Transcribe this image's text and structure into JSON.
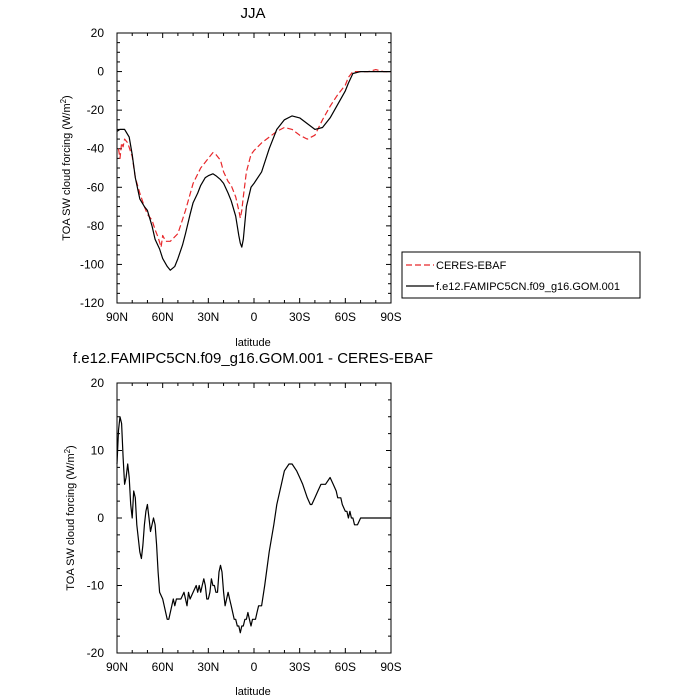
{
  "chart_data": [
    {
      "type": "line",
      "title": "JJA",
      "xlabel": "latitude",
      "ylabel_main": "TOA SW cloud forcing (W/m",
      "ylabel_sup": "2",
      "ylabel_tail": ")",
      "xlim": [
        90,
        -90
      ],
      "ylim": [
        -120,
        20
      ],
      "x_ticks": [
        {
          "value": 90,
          "label": "90N"
        },
        {
          "value": 60,
          "label": "60N"
        },
        {
          "value": 30,
          "label": "30N"
        },
        {
          "value": 0,
          "label": "0"
        },
        {
          "value": -30,
          "label": "30S"
        },
        {
          "value": -60,
          "label": "60S"
        },
        {
          "value": -90,
          "label": "90S"
        }
      ],
      "y_ticks": [
        {
          "value": 20,
          "label": "20"
        },
        {
          "value": 0,
          "label": "0"
        },
        {
          "value": -20,
          "label": "-20"
        },
        {
          "value": -40,
          "label": "-40"
        },
        {
          "value": -60,
          "label": "-60"
        },
        {
          "value": -80,
          "label": "-80"
        },
        {
          "value": -100,
          "label": "-100"
        },
        {
          "value": -120,
          "label": "-120"
        }
      ],
      "legend": "outside-right",
      "series": [
        {
          "name": "CERES-EBAF",
          "style": "dashed",
          "color": "#e8282b",
          "x": [
            89,
            88,
            87,
            86,
            85,
            83,
            80,
            78,
            75,
            72,
            70,
            67,
            65,
            63,
            61,
            60,
            58,
            55,
            50,
            45,
            40,
            35,
            30,
            27,
            25,
            22,
            20,
            17,
            15,
            12,
            10,
            9,
            8,
            7,
            5,
            2,
            0,
            -5,
            -10,
            -15,
            -20,
            -25,
            -30,
            -35,
            -40,
            -45,
            -50,
            -55,
            -60,
            -62,
            -65,
            -70,
            -75,
            -80,
            -85,
            -90
          ],
          "y": [
            -40,
            -45,
            -37,
            -39,
            -35,
            -37,
            -44,
            -55,
            -63,
            -70,
            -74,
            -77,
            -82,
            -86,
            -91,
            -85,
            -88,
            -88,
            -84,
            -72,
            -58,
            -50,
            -45,
            -42,
            -43,
            -46,
            -52,
            -57,
            -59,
            -65,
            -72,
            -76,
            -72,
            -65,
            -52,
            -43,
            -41,
            -37,
            -34,
            -31,
            -29,
            -30,
            -33,
            -35,
            -33,
            -25,
            -18,
            -12,
            -7,
            -3,
            0,
            0,
            0,
            1,
            0,
            0
          ]
        },
        {
          "name": "f.e12.FAMIPC5CN.f09_g16.GOM.001",
          "style": "solid",
          "color": "#000000",
          "x": [
            90,
            88,
            85,
            82,
            80,
            78,
            75,
            72,
            70,
            67,
            65,
            62,
            60,
            57,
            55,
            52,
            50,
            47,
            45,
            42,
            40,
            37,
            35,
            32,
            30,
            27,
            25,
            22,
            20,
            17,
            15,
            12,
            10,
            9,
            8,
            7,
            5,
            2,
            0,
            -5,
            -10,
            -15,
            -20,
            -25,
            -30,
            -35,
            -40,
            -45,
            -50,
            -55,
            -60,
            -62,
            -65,
            -70,
            -75,
            -80,
            -85,
            -90
          ],
          "y": [
            -31,
            -30,
            -30,
            -34,
            -43,
            -55,
            -66,
            -70,
            -72,
            -80,
            -87,
            -92,
            -97,
            -101,
            -103,
            -101,
            -97,
            -90,
            -84,
            -74,
            -68,
            -63,
            -59,
            -55,
            -54,
            -53,
            -54,
            -56,
            -58,
            -63,
            -67,
            -75,
            -85,
            -89,
            -91,
            -87,
            -70,
            -60,
            -58,
            -52,
            -40,
            -30,
            -25,
            -23,
            -24,
            -27,
            -30,
            -29,
            -24,
            -17,
            -10,
            -6,
            -1,
            0,
            0,
            0,
            0,
            0
          ]
        }
      ]
    },
    {
      "type": "line",
      "title": "f.e12.FAMIPC5CN.f09_g16.GOM.001 - CERES-EBAF",
      "xlabel": "latitude",
      "ylabel_main": "TOA SW cloud forcing (W/m",
      "ylabel_sup": "2",
      "ylabel_tail": ")",
      "xlim": [
        90,
        -90
      ],
      "ylim": [
        -20,
        20
      ],
      "x_ticks": [
        {
          "value": 90,
          "label": "90N"
        },
        {
          "value": 60,
          "label": "60N"
        },
        {
          "value": 30,
          "label": "30N"
        },
        {
          "value": 0,
          "label": "0"
        },
        {
          "value": -30,
          "label": "30S"
        },
        {
          "value": -60,
          "label": "60S"
        },
        {
          "value": -90,
          "label": "90S"
        }
      ],
      "y_ticks": [
        {
          "value": 20,
          "label": "20"
        },
        {
          "value": 10,
          "label": "10"
        },
        {
          "value": 0,
          "label": "0"
        },
        {
          "value": -10,
          "label": "-10"
        },
        {
          "value": -20,
          "label": "-20"
        }
      ],
      "series": [
        {
          "style": "solid",
          "color": "#000000",
          "x": [
            90,
            89,
            88,
            87,
            86,
            85,
            84,
            83,
            82,
            81,
            80,
            79,
            78,
            77,
            76,
            75,
            74,
            73,
            72,
            71,
            70,
            69,
            68,
            67,
            66,
            65,
            64,
            63,
            62,
            60,
            59,
            58,
            57,
            56,
            55,
            54,
            53,
            52,
            51,
            50,
            48,
            46,
            45,
            44,
            43,
            42,
            40,
            38,
            37,
            36,
            35,
            34,
            33,
            32,
            31,
            30,
            29,
            28,
            27,
            26,
            25,
            24,
            23,
            22,
            21,
            20,
            19,
            18,
            17,
            16,
            15,
            14,
            13,
            12,
            11,
            10,
            9,
            8,
            7,
            6,
            5,
            4,
            3,
            2,
            1,
            0,
            -1,
            -2,
            -3,
            -4,
            -5,
            -7,
            -10,
            -13,
            -15,
            -18,
            -20,
            -23,
            -25,
            -28,
            -30,
            -32,
            -35,
            -37,
            -38,
            -40,
            -42,
            -44,
            -45,
            -47,
            -50,
            -52,
            -54,
            -55,
            -57,
            -58,
            -60,
            -61,
            -62,
            -63,
            -64,
            -65,
            -66,
            -67,
            -68,
            -70,
            -72,
            -75,
            -77,
            -80,
            -82,
            -84,
            -86,
            -88,
            -90
          ],
          "y": [
            8,
            13,
            15,
            14,
            9,
            5,
            6,
            8,
            6,
            2,
            0,
            4,
            3,
            -1,
            -3,
            -5,
            -6,
            -4,
            -1,
            1,
            2,
            0,
            -2,
            -1,
            0,
            -1,
            -4,
            -8,
            -11,
            -12,
            -13,
            -14,
            -15,
            -15,
            -14,
            -13,
            -12,
            -13,
            -12,
            -12,
            -12,
            -11,
            -12,
            -13,
            -11,
            -12,
            -11,
            -10,
            -11,
            -10,
            -11,
            -10,
            -9,
            -10,
            -12,
            -12,
            -11,
            -9,
            -10,
            -10,
            -11,
            -11,
            -8,
            -7,
            -8,
            -11,
            -13,
            -12,
            -11,
            -12,
            -13,
            -14,
            -15,
            -15,
            -16,
            -16,
            -17,
            -16,
            -16,
            -15,
            -15,
            -14,
            -15,
            -16,
            -15,
            -15,
            -15,
            -14,
            -13,
            -13,
            -13,
            -10,
            -5,
            -1,
            2,
            5,
            7,
            8,
            8,
            7,
            6,
            5,
            3,
            2,
            2,
            3,
            4,
            5,
            5,
            5,
            6,
            5,
            4,
            3,
            3,
            2,
            1,
            1,
            0,
            1,
            0,
            0,
            -1,
            -1,
            -1,
            0,
            0,
            0,
            0,
            0,
            0,
            0,
            0,
            0,
            0
          ]
        }
      ]
    }
  ]
}
